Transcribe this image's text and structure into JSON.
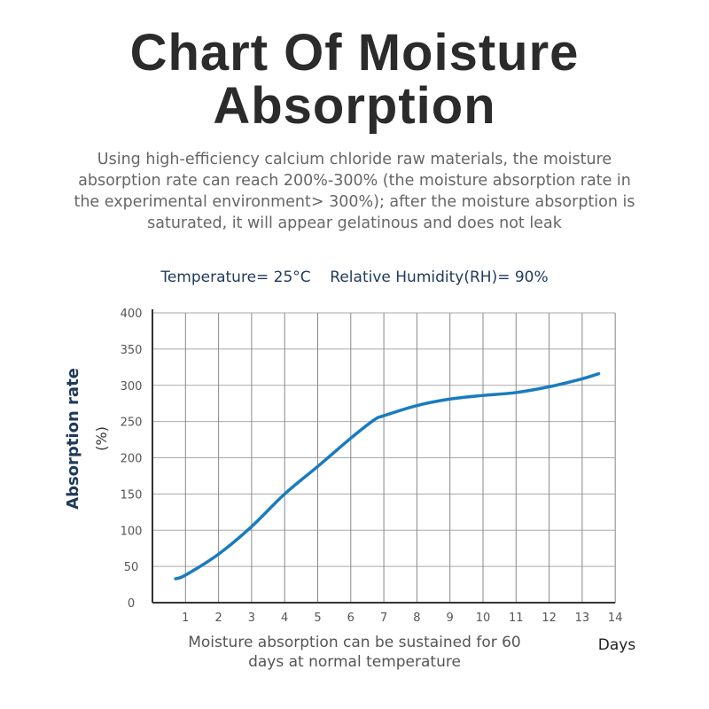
{
  "title": "Chart Of Moisture Absorption",
  "description": "Using high-efficiency calcium chloride raw materials, the moisture absorption rate can reach 200%-300% (the moisture absorption rate in the experimental environment> 300%); after the moisture absorption is saturated, it will appear gelatinous and does not leak",
  "conditions": "Temperature= 25°C    Relative Humidity(RH)= 90%",
  "footnote": "Moisture absorption can be sustained for 60 days at normal temperature",
  "chart_data": {
    "type": "line",
    "xlabel": "Days",
    "ylabel": "Absorption rate (%)",
    "ylabel_line1": "Absorption rate",
    "ylabel_line2": "(%)",
    "xlim": [
      0,
      14
    ],
    "ylim": [
      0,
      400
    ],
    "x_ticks": [
      "1",
      "2",
      "3",
      "4",
      "5",
      "6",
      "7",
      "8",
      "9",
      "10",
      "11",
      "12",
      "13",
      "14"
    ],
    "y_ticks": [
      "0",
      "50",
      "100",
      "150",
      "200",
      "250",
      "300",
      "350",
      "400"
    ],
    "grid": true,
    "line_color": "#1a7bbf",
    "series": [
      {
        "x": [
          0.7,
          1,
          2,
          3,
          4,
          5,
          6,
          6.7,
          7,
          8,
          9,
          10,
          11,
          12,
          13,
          13.5
        ],
        "y": [
          33,
          38,
          67,
          105,
          150,
          188,
          227,
          252,
          258,
          272,
          281,
          286,
          290,
          298,
          309,
          316
        ]
      }
    ]
  }
}
